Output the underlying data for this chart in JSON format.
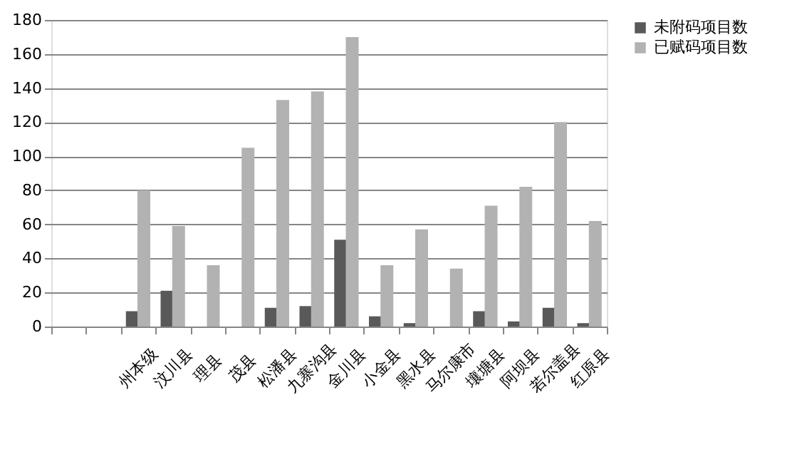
{
  "chart_data": {
    "type": "bar",
    "categories": [
      null,
      null,
      "州本级",
      "汶川县",
      "理县",
      "茂县",
      "松潘县",
      "九寨沟县",
      "金川县",
      "小金县",
      "黑水县",
      "马尔康市",
      "壤塘县",
      "阿坝县",
      "若尔盖县",
      "红原县"
    ],
    "series": [
      {
        "name": "未附码项目数",
        "color": "#595959",
        "values": [
          null,
          null,
          9,
          21,
          null,
          null,
          11,
          12,
          51,
          6,
          2,
          null,
          9,
          3,
          11,
          2
        ]
      },
      {
        "name": "已赋码项目数",
        "color": "#b2b2b2",
        "values": [
          null,
          null,
          80,
          59,
          36,
          105,
          133,
          138,
          170,
          36,
          57,
          34,
          71,
          82,
          120,
          62
        ]
      }
    ],
    "ylim": [
      0,
      180
    ],
    "yticks": [
      0,
      20,
      40,
      60,
      80,
      100,
      120,
      140,
      160,
      180
    ],
    "grid": "y",
    "legend": "right"
  }
}
